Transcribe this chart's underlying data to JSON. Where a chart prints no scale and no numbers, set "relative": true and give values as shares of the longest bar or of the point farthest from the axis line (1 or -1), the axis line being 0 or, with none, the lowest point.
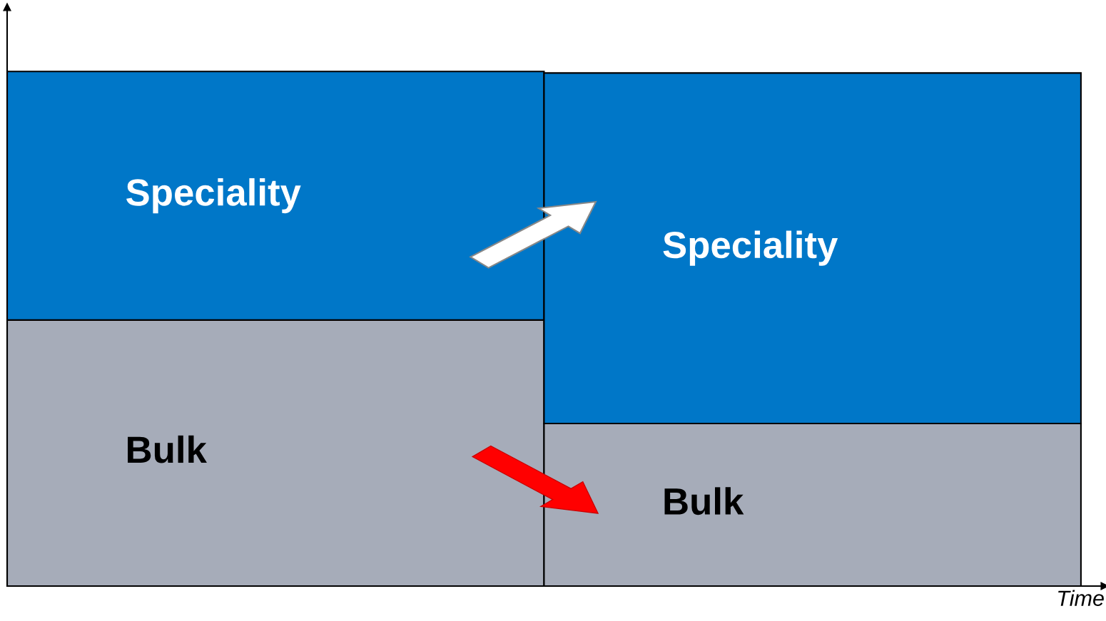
{
  "chart_data": {
    "type": "bar",
    "stacked": true,
    "relative": true,
    "xlabel": "Time",
    "categories": [
      null,
      null
    ],
    "series": [
      {
        "name": "Bulk",
        "color": "#a6acb9",
        "values": [
          0.517,
          0.316
        ]
      },
      {
        "name": "Speciality",
        "color": "#0077c8",
        "values": [
          0.483,
          0.681
        ]
      }
    ]
  }
}
